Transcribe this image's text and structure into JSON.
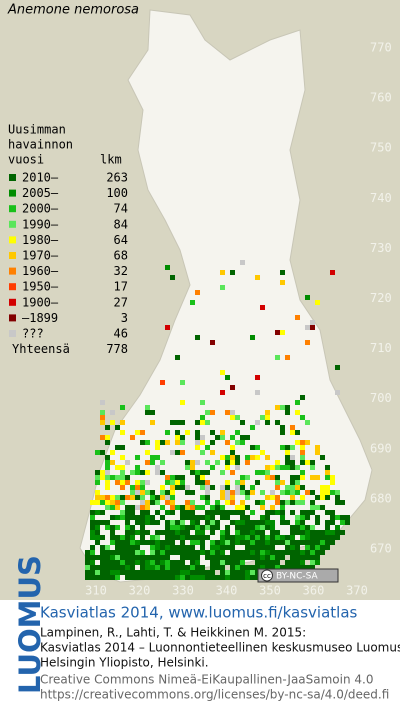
{
  "title": "Anemone nemorosa",
  "legend": {
    "heading": [
      "Uusimman",
      "havainnon"
    ],
    "col1": "vuosi",
    "col2": "lkm",
    "items": [
      {
        "label": "2010–",
        "count": 263,
        "color": "#006400"
      },
      {
        "label": "2005–",
        "count": 100,
        "color": "#008c00"
      },
      {
        "label": "2000–",
        "count": 74,
        "color": "#19c019"
      },
      {
        "label": "1990–",
        "count": 84,
        "color": "#5ae65a"
      },
      {
        "label": "1980–",
        "count": 64,
        "color": "#ffff00"
      },
      {
        "label": "1970–",
        "count": 68,
        "color": "#ffc800"
      },
      {
        "label": "1960–",
        "count": 32,
        "color": "#ff8000"
      },
      {
        "label": "1950–",
        "count": 17,
        "color": "#ff3c00"
      },
      {
        "label": "1900–",
        "count": 27,
        "color": "#d20000"
      },
      {
        "label": "–1899",
        "count": 3,
        "color": "#820000"
      },
      {
        "label": "???",
        "count": 46,
        "color": "#c8c8c8"
      }
    ],
    "total_label": "Yhteensä",
    "total": 778
  },
  "axes": {
    "y_ticks": [
      770,
      760,
      750,
      740,
      730,
      720,
      710,
      700,
      690,
      680,
      670
    ],
    "x_ticks": [
      310,
      320,
      330,
      340,
      350,
      360,
      370
    ]
  },
  "badge": {
    "cc": "cc",
    "text": "BY-NC-SA"
  },
  "logo": "LUOMUS",
  "footer": {
    "link": "Kasviatlas 2014, www.luomus.fi/kasviatlas",
    "citation": [
      "Lampinen, R., Lahti, T. & Heikkinen M. 2015:",
      "Kasviatlas 2014 – Luonnontieteellinen keskusmuseo Luomus,",
      "Helsingin Yliopisto, Helsinki."
    ],
    "license": [
      "Creative Commons Nimeä-EiKaupallinen-JaaSamoin 4.0",
      "https://creativecommons.org/licenses/by-nc-sa/4.0/deed.fi"
    ]
  }
}
